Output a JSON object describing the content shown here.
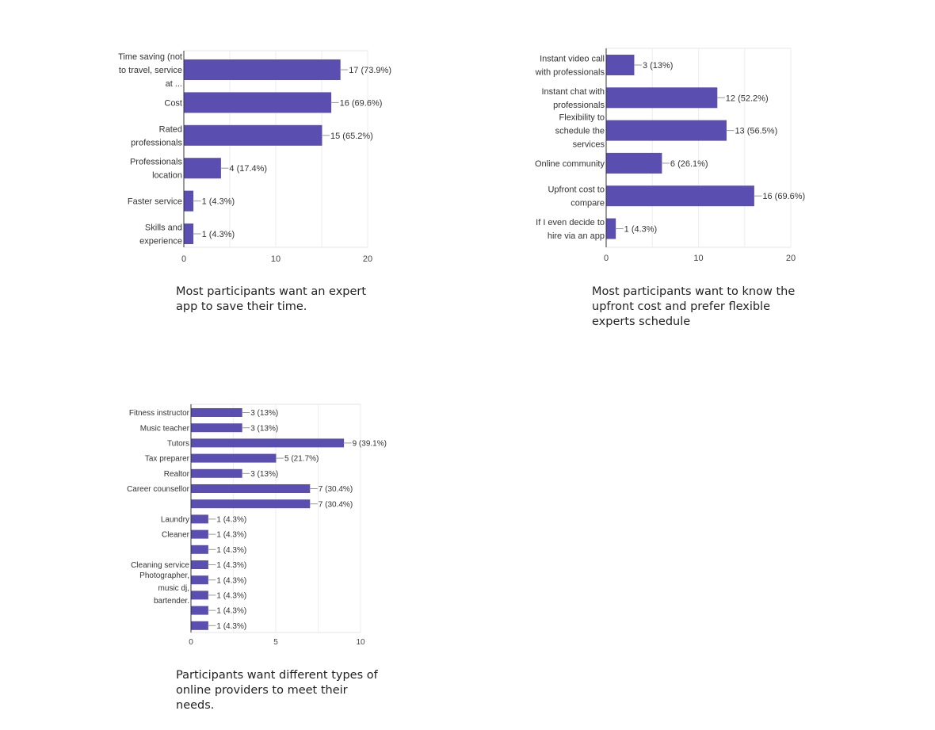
{
  "charts": [
    {
      "type": "bar",
      "orientation": "horizontal",
      "categories": [
        [
          "Time saving (not",
          "to travel, service",
          "at ..."
        ],
        [
          "Cost"
        ],
        [
          "Rated",
          "professionals"
        ],
        [
          "Professionals",
          "location"
        ],
        [
          "Faster service"
        ],
        [
          "Skills and",
          "experience"
        ]
      ],
      "values": [
        17,
        16,
        15,
        4,
        1,
        1
      ],
      "value_labels": [
        "17 (73.9%)",
        "16 (69.6%)",
        "15 (65.2%)",
        "4 (17.4%)",
        "1 (4.3%)",
        "1 (4.3%)"
      ],
      "xlim": [
        0,
        20
      ],
      "xticks": [
        "0",
        "10",
        "20"
      ],
      "bar_color": "#5a4fb0",
      "grid": true,
      "caption": "Most participants want an expert app to save their time."
    },
    {
      "type": "bar",
      "orientation": "horizontal",
      "categories": [
        [
          "Instant video call",
          "with professionals"
        ],
        [
          "Instant chat with",
          "professionals"
        ],
        [
          "Flexibility to",
          "schedule the",
          "services"
        ],
        [
          "Online community"
        ],
        [
          "Upfront cost to",
          "compare"
        ],
        [
          "If I even decide to",
          "hire via an app"
        ]
      ],
      "values": [
        3,
        12,
        13,
        6,
        16,
        1
      ],
      "value_labels": [
        "3 (13%)",
        "12 (52.2%)",
        "13 (56.5%)",
        "6 (26.1%)",
        "16 (69.6%)",
        "1 (4.3%)"
      ],
      "xlim": [
        0,
        20
      ],
      "xticks": [
        "0",
        "10",
        "20"
      ],
      "bar_color": "#5a4fb0",
      "grid": true,
      "caption": "Most participants want to know the upfront cost and prefer flexible experts schedule"
    },
    {
      "type": "bar",
      "orientation": "horizontal",
      "categories": [
        [
          "Fitness instructor"
        ],
        [
          "Music teacher"
        ],
        [
          "Tutors"
        ],
        [
          "Tax preparer"
        ],
        [
          "Realtor"
        ],
        [
          "Career counsellor"
        ],
        [
          ""
        ],
        [
          "Laundry"
        ],
        [
          "Cleaner"
        ],
        [
          ""
        ],
        [
          "Cleaning service"
        ],
        [
          ""
        ],
        [
          ""
        ],
        [
          ""
        ],
        [
          ""
        ]
      ],
      "values": [
        3,
        3,
        9,
        5,
        3,
        7,
        7,
        1,
        1,
        1,
        1,
        1,
        1,
        1,
        1
      ],
      "value_labels": [
        "3 (13%)",
        "3 (13%)",
        "9 (39.1%)",
        "5 (21.7%)",
        "3 (13%)",
        "7 (30.4%)",
        "7 (30.4%)",
        "1 (4.3%)",
        "1 (4.3%)",
        "1 (4.3%)",
        "1 (4.3%)",
        "1 (4.3%)",
        "1 (4.3%)",
        "1 (4.3%)",
        "1 (4.3%)"
      ],
      "extra_label": [
        "Photographer,",
        "music dj,",
        "bartender."
      ],
      "xlim": [
        0,
        10
      ],
      "xticks": [
        "0",
        "5",
        "10"
      ],
      "bar_color": "#5a4fb0",
      "grid": true,
      "caption": "Participants want different types of online providers to meet their needs."
    }
  ],
  "chart_data": [
    {
      "type": "bar",
      "categories": [
        "Time saving (not to travel, service at ...",
        "Cost",
        "Rated professionals",
        "Professionals location",
        "Faster service",
        "Skills and experience"
      ],
      "values": [
        17,
        16,
        15,
        4,
        1,
        1
      ],
      "xlim": [
        0,
        20
      ]
    },
    {
      "type": "bar",
      "categories": [
        "Instant video call with professionals",
        "Instant chat with professionals",
        "Flexibility to schedule the services",
        "Online community",
        "Upfront cost to compare",
        "If I even decide to hire via an app"
      ],
      "values": [
        3,
        12,
        13,
        6,
        16,
        1
      ],
      "xlim": [
        0,
        20
      ]
    },
    {
      "type": "bar",
      "categories": [
        "Fitness instructor",
        "Music teacher",
        "Tutors",
        "Tax preparer",
        "Realtor",
        "Career counsellor",
        "",
        "Laundry",
        "Cleaner",
        "",
        "Cleaning service",
        "",
        "",
        "",
        ""
      ],
      "values": [
        3,
        3,
        9,
        5,
        3,
        7,
        7,
        1,
        1,
        1,
        1,
        1,
        1,
        1,
        1
      ],
      "xlim": [
        0,
        10
      ]
    }
  ]
}
